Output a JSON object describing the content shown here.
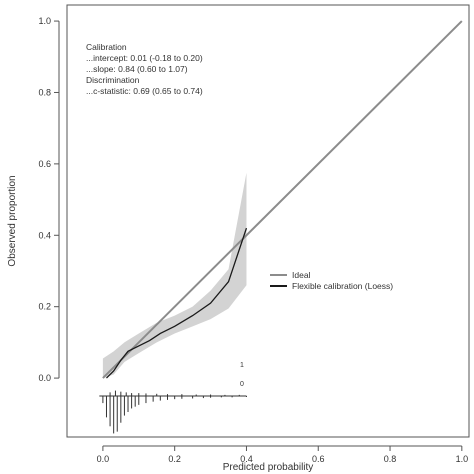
{
  "chart_data": {
    "type": "line",
    "title": "",
    "xlabel": "Predicted probability",
    "ylabel": "Observed proportion",
    "xlim": [
      -0.1,
      1.02
    ],
    "ylim": [
      -0.165,
      1.045
    ],
    "grid": false,
    "x_ticks": [
      0.0,
      0.2,
      0.4,
      0.6,
      0.8,
      1.0
    ],
    "y_ticks": [
      0.0,
      0.2,
      0.4,
      0.6,
      0.8,
      1.0
    ],
    "x_tick_labels": [
      "0.0",
      "0.2",
      "0.4",
      "0.6",
      "0.8",
      "1.0"
    ],
    "y_tick_labels": [
      "0.0",
      "0.2",
      "0.4",
      "0.6",
      "0.8",
      "1.0"
    ],
    "annotations": [
      "Calibration",
      "...intercept: 0.01 (-0.18 to 0.20)",
      "...slope: 0.84 (0.60 to 1.07)",
      "Discrimination",
      "...c-statistic: 0.69 (0.65 to 0.74)"
    ],
    "legend": {
      "placement": "right-middle",
      "entries": [
        {
          "label": "Ideal",
          "color": "#8c8c8c"
        },
        {
          "label": "Flexible calibration (Loess)",
          "color": "#1a1a1a"
        }
      ]
    },
    "series": [
      {
        "name": "Ideal",
        "color": "#8c8c8c",
        "x": [
          0.0,
          1.0
        ],
        "y": [
          0.0,
          1.0
        ]
      },
      {
        "name": "Flexible calibration (Loess)",
        "color": "#1a1a1a",
        "x": [
          0.01,
          0.03,
          0.05,
          0.07,
          0.1,
          0.13,
          0.16,
          0.2,
          0.25,
          0.3,
          0.35,
          0.4
        ],
        "y": [
          0.0,
          0.02,
          0.05,
          0.075,
          0.09,
          0.105,
          0.125,
          0.145,
          0.175,
          0.21,
          0.27,
          0.42
        ]
      }
    ],
    "confidence_band": {
      "color": "#d3d3d3",
      "x": [
        0.0,
        0.03,
        0.06,
        0.1,
        0.15,
        0.2,
        0.25,
        0.3,
        0.35,
        0.4
      ],
      "lower": [
        0.0,
        0.01,
        0.045,
        0.07,
        0.1,
        0.125,
        0.145,
        0.165,
        0.195,
        0.26
      ],
      "upper": [
        0.055,
        0.075,
        0.1,
        0.125,
        0.155,
        0.175,
        0.2,
        0.245,
        0.305,
        0.575
      ]
    },
    "rug": {
      "top_label": "1",
      "bottom_label": "0",
      "baseline_y": -0.05,
      "events_x": [
        0.02,
        0.035,
        0.05,
        0.065,
        0.08,
        0.1,
        0.12,
        0.15,
        0.18,
        0.22,
        0.26,
        0.3,
        0.34,
        0.38
      ],
      "events_height": [
        0.01,
        0.015,
        0.012,
        0.01,
        0.008,
        0.008,
        0.007,
        0.006,
        0.005,
        0.005,
        0.004,
        0.004,
        0.003,
        0.003
      ],
      "nonevents_x": [
        0.0,
        0.01,
        0.02,
        0.03,
        0.04,
        0.05,
        0.06,
        0.07,
        0.08,
        0.09,
        0.1,
        0.12,
        0.14,
        0.16,
        0.18,
        0.2,
        0.22,
        0.25,
        0.28,
        0.3,
        0.33,
        0.36,
        0.4
      ],
      "nonevents_height": [
        0.02,
        0.06,
        0.085,
        0.105,
        0.1,
        0.075,
        0.055,
        0.045,
        0.035,
        0.03,
        0.025,
        0.02,
        0.016,
        0.013,
        0.011,
        0.009,
        0.008,
        0.007,
        0.006,
        0.005,
        0.004,
        0.004,
        0.003
      ]
    }
  }
}
